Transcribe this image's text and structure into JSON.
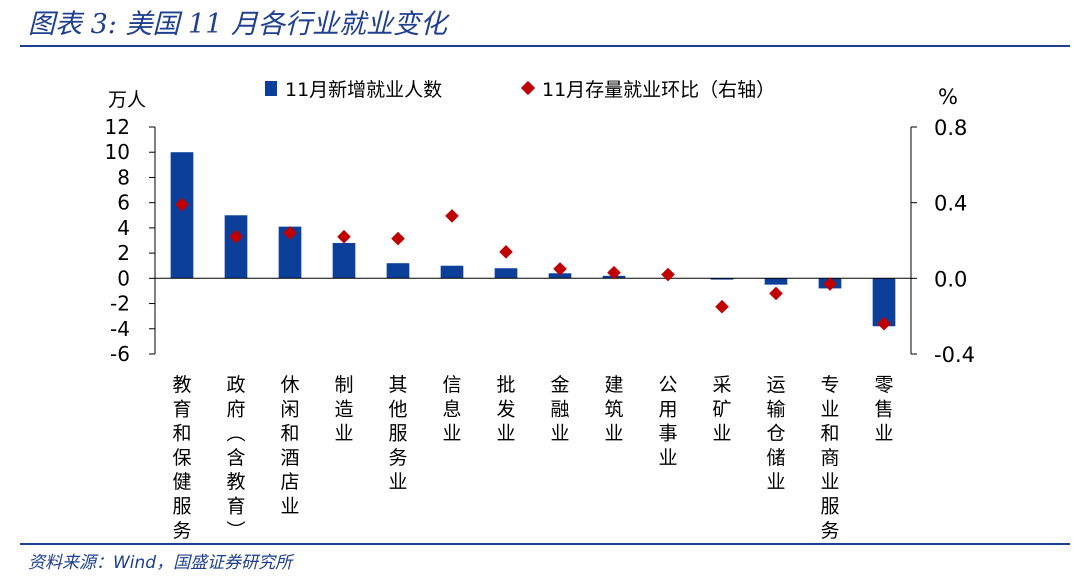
{
  "figure": {
    "title": "图表 3:  美国 11 月各行业就业变化",
    "source": "资料来源：Wind，国盛证券研究所"
  },
  "colors": {
    "accent": "#1f3f8f",
    "bar": "#0b3f9a",
    "marker": "#c00000"
  },
  "chart_data": {
    "type": "bar",
    "categories": [
      "教育和保健服务",
      "政府(含教育)",
      "休闲和酒店业",
      "制造业",
      "其他服务业",
      "信息业",
      "批发业",
      "金融业",
      "建筑业",
      "公用事业",
      "采矿业",
      "运输仓储业",
      "专业和商业服务",
      "零售业"
    ],
    "series": [
      {
        "name": "11月新增就业人数",
        "axis": "left",
        "type": "bar",
        "values": [
          10.0,
          5.0,
          4.1,
          2.8,
          1.2,
          1.0,
          0.8,
          0.4,
          0.2,
          0.0,
          -0.1,
          -0.5,
          -0.8,
          -3.8
        ]
      },
      {
        "name": "11月存量就业环比（右轴）",
        "axis": "right",
        "type": "scatter",
        "values": [
          0.39,
          0.22,
          0.24,
          0.22,
          0.21,
          0.33,
          0.14,
          0.05,
          0.03,
          0.02,
          -0.15,
          -0.08,
          -0.03,
          -0.24
        ]
      }
    ],
    "ylabel_left": "万人",
    "ylabel_right": "%",
    "ylim_left": [
      -6,
      12
    ],
    "yticks_left": [
      "12",
      "10",
      "8",
      "6",
      "4",
      "2",
      "0",
      "-2",
      "-4",
      "-6"
    ],
    "ylim_right": [
      -0.4,
      0.8
    ],
    "yticks_right": [
      "0.8",
      "0.4",
      "0.0",
      "-0.4"
    ],
    "legend": "top",
    "grid": false
  }
}
